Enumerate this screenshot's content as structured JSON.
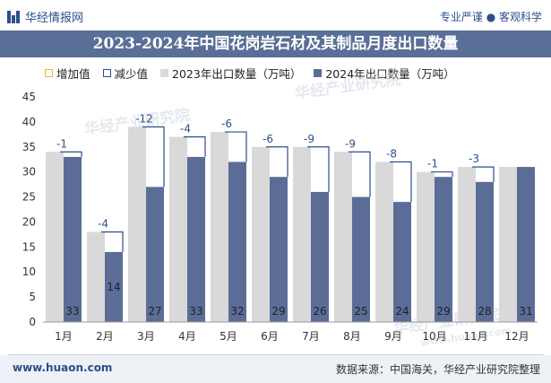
{
  "header": {
    "brand": "华经情报网",
    "top_right": "专业严谨 ● 客观科学",
    "title": "2023-2024年中国花岗岩石材及其制品月度出口数量"
  },
  "legend": {
    "increase": "增加值",
    "decrease": "减少值",
    "series2023": "2023年出口数量（万吨）",
    "series2024": "2024年出口数量（万吨）"
  },
  "footer": {
    "left": "www.huaon.com",
    "right": "数据来源：中国海关，华经产业研究院整理"
  },
  "watermarks": [
    "华经产业研究院",
    "www.huaon.com"
  ],
  "colors": {
    "bar2023": "#d9d9d9",
    "bar2024": "#5b6d97",
    "increase": "#f2b630",
    "decrease": "#2d4e8c",
    "title_band": "#5a6f97"
  },
  "chart_data": {
    "type": "bar",
    "title": "2023-2024年中国花岗岩石材及其制品月度出口数量",
    "categories": [
      "1月",
      "2月",
      "3月",
      "4月",
      "5月",
      "6月",
      "7月",
      "8月",
      "9月",
      "10月",
      "11月",
      "12月"
    ],
    "series": [
      {
        "name": "2023年出口数量（万吨）",
        "values": [
          34,
          18,
          39,
          37,
          38,
          35,
          35,
          34,
          32,
          30,
          31,
          31
        ]
      },
      {
        "name": "2024年出口数量（万吨）",
        "values": [
          33,
          14,
          27,
          33,
          32,
          29,
          26,
          25,
          24,
          29,
          28,
          31
        ]
      }
    ],
    "change_labels": [
      "-1",
      "-4",
      "-12",
      "-4",
      "-6",
      "-6",
      "-9",
      "-9",
      "-8",
      "-1",
      "-3",
      ""
    ],
    "bar_labels_2024": [
      "33",
      "14",
      "27",
      "33",
      "32",
      "29",
      "26",
      "25",
      "24",
      "29",
      "28",
      "31"
    ],
    "yticks": [
      "0",
      "5",
      "10",
      "15",
      "20",
      "25",
      "30",
      "35",
      "40",
      "45"
    ],
    "ylim": [
      0,
      45
    ],
    "legend_position": "top"
  }
}
